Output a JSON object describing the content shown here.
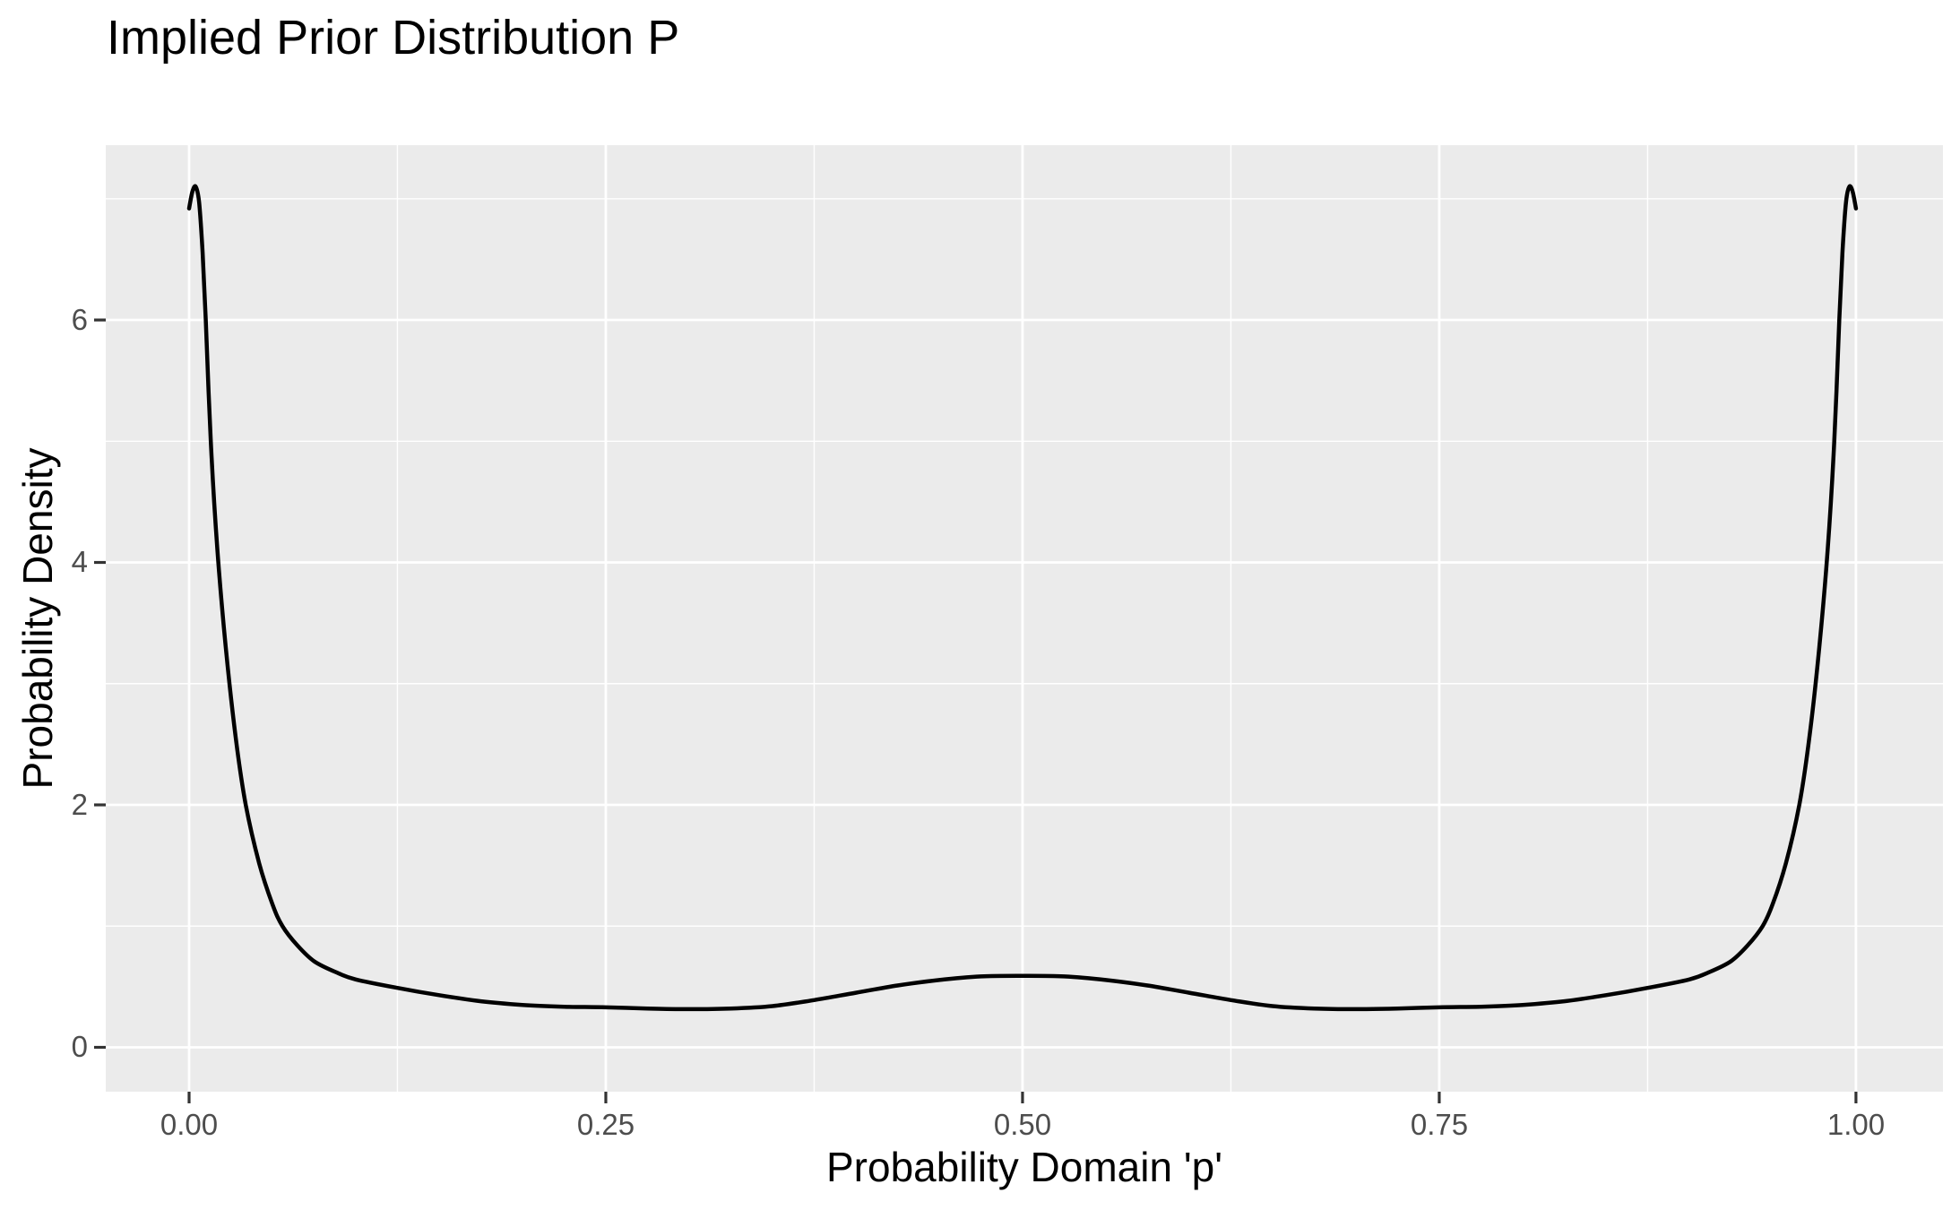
{
  "title": "Implied Prior Distribution P",
  "colors": {
    "background": "#FFFFFF",
    "panel_background": "#EBEBEB",
    "grid_major": "#FFFFFF",
    "grid_minor": "#FFFFFF",
    "line": "#000000",
    "tick_mark": "#333333",
    "tick_label": "#4D4D4D",
    "title_text": "#000000"
  },
  "chart_data": {
    "type": "line",
    "title": "Implied Prior Distribution P",
    "xlabel": "Probability Domain 'p'",
    "ylabel": "Probability Density",
    "grid": true,
    "legend": "none",
    "x_axis": {
      "domain": [
        -0.05,
        1.0522
      ],
      "major_ticks": [
        0,
        0.25,
        0.5,
        0.75,
        1.0
      ],
      "tick_labels": [
        "0.00",
        "0.25",
        "0.50",
        "0.75",
        "1.00"
      ],
      "minor_ticks": [
        0.125,
        0.375,
        0.625,
        0.875
      ]
    },
    "y_axis": {
      "domain": [
        -0.366,
        7.442
      ],
      "major_ticks": [
        0,
        2,
        4,
        6
      ],
      "tick_labels": [
        "0",
        "2",
        "4",
        "6"
      ],
      "minor_ticks": [
        1,
        3,
        5,
        7
      ]
    },
    "series": [
      {
        "name": "implied-prior-density",
        "points": [
          [
            0.0,
            6.92
          ],
          [
            0.002,
            7.06
          ],
          [
            0.004,
            7.1
          ],
          [
            0.006,
            6.97
          ],
          [
            0.008,
            6.58
          ],
          [
            0.01,
            6.0
          ],
          [
            0.013,
            5.0
          ],
          [
            0.017,
            4.1
          ],
          [
            0.022,
            3.3
          ],
          [
            0.028,
            2.55
          ],
          [
            0.034,
            2.0
          ],
          [
            0.042,
            1.52
          ],
          [
            0.05,
            1.18
          ],
          [
            0.056,
            1.0
          ],
          [
            0.065,
            0.84
          ],
          [
            0.075,
            0.71
          ],
          [
            0.088,
            0.62
          ],
          [
            0.1,
            0.56
          ],
          [
            0.125,
            0.49
          ],
          [
            0.15,
            0.43
          ],
          [
            0.175,
            0.38
          ],
          [
            0.2,
            0.35
          ],
          [
            0.225,
            0.335
          ],
          [
            0.25,
            0.33
          ],
          [
            0.275,
            0.32
          ],
          [
            0.3,
            0.315
          ],
          [
            0.325,
            0.32
          ],
          [
            0.35,
            0.34
          ],
          [
            0.375,
            0.39
          ],
          [
            0.4,
            0.45
          ],
          [
            0.425,
            0.51
          ],
          [
            0.45,
            0.555
          ],
          [
            0.475,
            0.585
          ],
          [
            0.5,
            0.59
          ],
          [
            0.525,
            0.585
          ],
          [
            0.55,
            0.555
          ],
          [
            0.575,
            0.51
          ],
          [
            0.6,
            0.45
          ],
          [
            0.625,
            0.39
          ],
          [
            0.65,
            0.34
          ],
          [
            0.675,
            0.32
          ],
          [
            0.7,
            0.315
          ],
          [
            0.725,
            0.32
          ],
          [
            0.75,
            0.33
          ],
          [
            0.775,
            0.335
          ],
          [
            0.8,
            0.35
          ],
          [
            0.825,
            0.38
          ],
          [
            0.85,
            0.43
          ],
          [
            0.875,
            0.49
          ],
          [
            0.9,
            0.56
          ],
          [
            0.912,
            0.62
          ],
          [
            0.925,
            0.71
          ],
          [
            0.935,
            0.84
          ],
          [
            0.944,
            1.0
          ],
          [
            0.95,
            1.18
          ],
          [
            0.958,
            1.52
          ],
          [
            0.966,
            2.0
          ],
          [
            0.972,
            2.55
          ],
          [
            0.978,
            3.3
          ],
          [
            0.983,
            4.1
          ],
          [
            0.987,
            5.0
          ],
          [
            0.99,
            6.0
          ],
          [
            0.992,
            6.58
          ],
          [
            0.994,
            6.97
          ],
          [
            0.996,
            7.1
          ],
          [
            0.998,
            7.06
          ],
          [
            1.0,
            6.92
          ]
        ]
      }
    ]
  }
}
